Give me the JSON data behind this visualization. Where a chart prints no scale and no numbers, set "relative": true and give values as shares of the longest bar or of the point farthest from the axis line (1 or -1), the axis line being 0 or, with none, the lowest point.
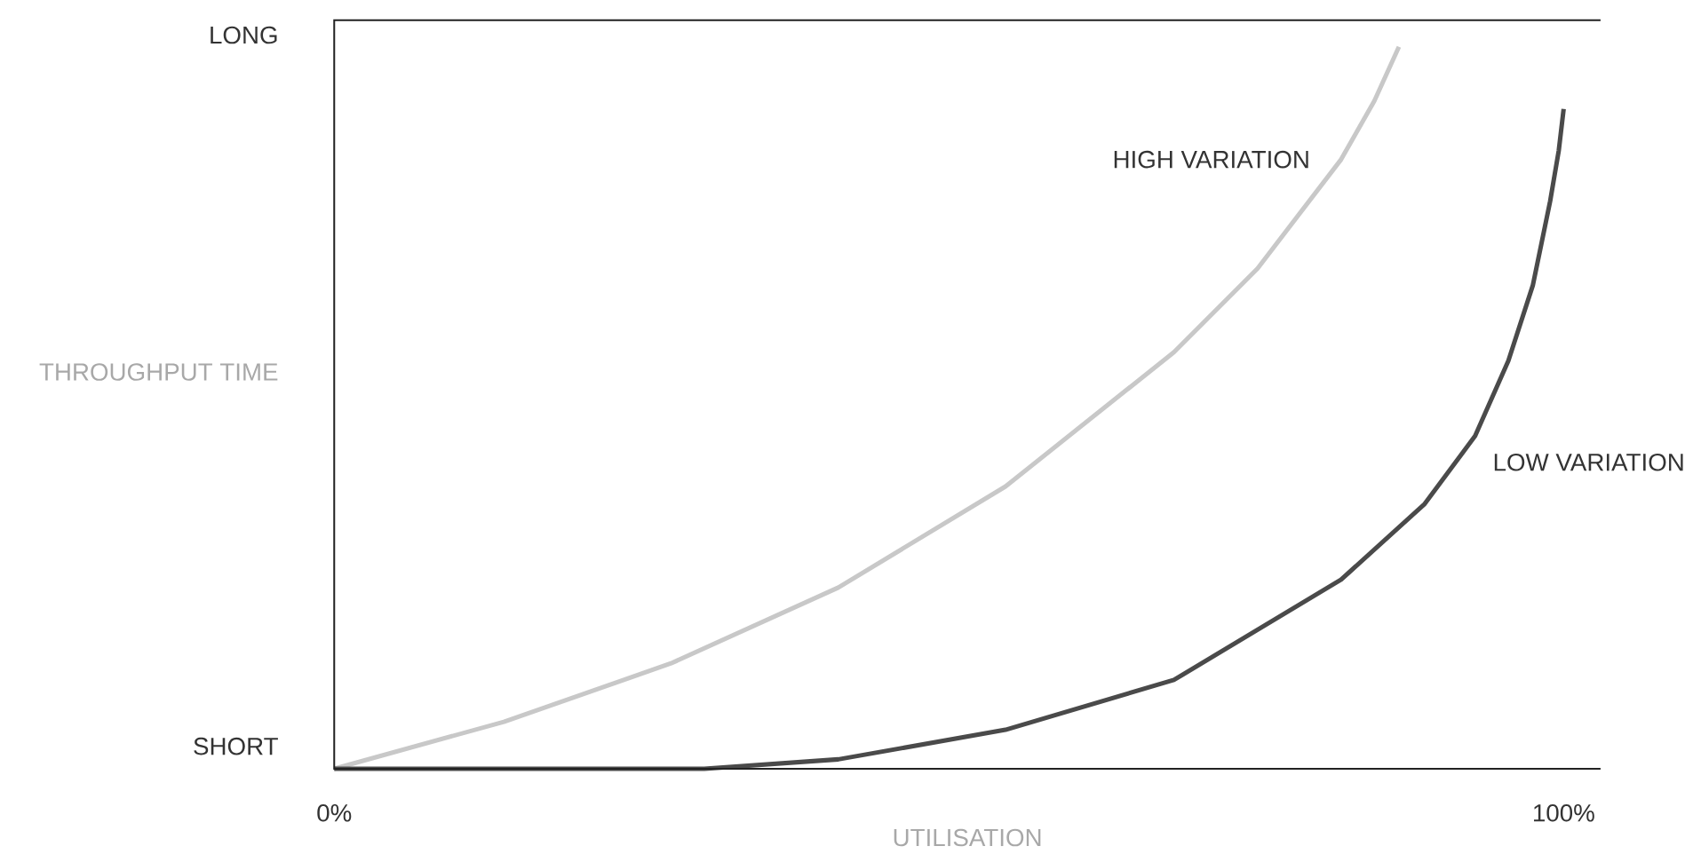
{
  "chart_data": {
    "type": "line",
    "xlabel": "UTILISATION",
    "ylabel": "THROUGHPUT TIME",
    "xlim": [
      0,
      103
    ],
    "xticks": [
      {
        "value": 0,
        "label": "0%"
      },
      {
        "value": 100,
        "label": "100%"
      }
    ],
    "relative": true,
    "annotations": [
      "SHORT",
      "LONG"
    ],
    "marker": "none",
    "line_style": "solid",
    "legend": false,
    "series": [
      {
        "name": "HIGH VARIATION",
        "color": "#c8c8c8",
        "x": [
          0,
          13.8,
          27.4,
          41.0,
          54.6,
          68.3,
          75.1,
          81.9,
          84.6,
          86.6
        ],
        "values": [
          0,
          0.065,
          0.146,
          0.251,
          0.391,
          0.577,
          0.693,
          0.844,
          0.925,
          1
        ]
      },
      {
        "name": "LOW VARIATION",
        "color": "#4a4a4a",
        "x": [
          0,
          30.1,
          41.0,
          54.6,
          68.3,
          81.9,
          88.7,
          92.8,
          95.5,
          97.5,
          98.9,
          99.6,
          100
        ],
        "values": [
          0,
          0,
          0.013,
          0.054,
          0.123,
          0.262,
          0.367,
          0.461,
          0.565,
          0.67,
          0.786,
          0.856,
          0.914
        ]
      }
    ]
  }
}
